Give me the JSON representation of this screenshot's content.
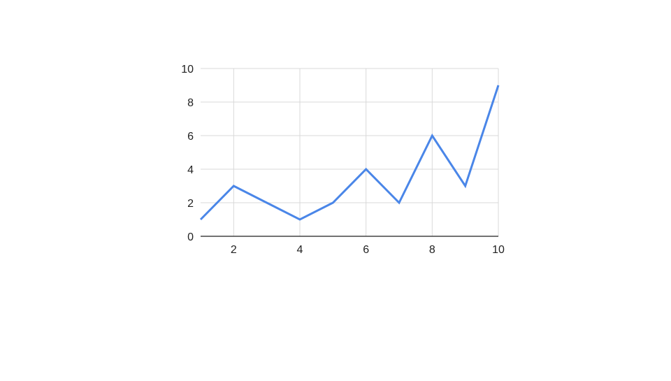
{
  "chart_data": {
    "type": "line",
    "title": "",
    "xlabel": "",
    "ylabel": "",
    "x": [
      1,
      2,
      3,
      4,
      5,
      6,
      7,
      8,
      9,
      10
    ],
    "series": [
      {
        "values": [
          1,
          3,
          2,
          1,
          2,
          4,
          2,
          6,
          3,
          9
        ],
        "color": "#4a86e8"
      }
    ],
    "xlim": [
      1,
      10
    ],
    "ylim": [
      0,
      10
    ],
    "xticks": [
      2,
      4,
      6,
      8,
      10
    ],
    "yticks": [
      0,
      2,
      4,
      6,
      8,
      10
    ],
    "xtick_labels": [
      "2",
      "4",
      "6",
      "8",
      "10"
    ],
    "ytick_labels": [
      "0",
      "2",
      "4",
      "6",
      "8",
      "10"
    ],
    "grid": true,
    "legend": "none",
    "colors": {
      "grid": "#d9d9d9",
      "axis": "#444444",
      "text": "#222222"
    }
  }
}
